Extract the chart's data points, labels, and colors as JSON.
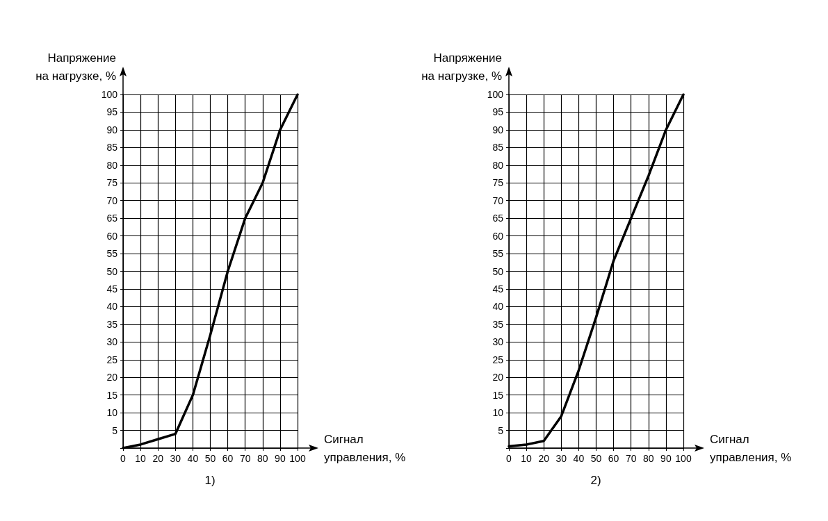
{
  "chart_data": [
    {
      "type": "line",
      "xlabel": "Сигнал\nуправления, %",
      "ylabel": "Напряжение\nна нагрузке, %",
      "annotations": [
        "1)"
      ],
      "x": [
        0,
        10,
        20,
        30,
        40,
        50,
        60,
        70,
        80,
        90,
        100
      ],
      "series": [
        {
          "color": "#000000",
          "values": [
            0,
            1,
            2.5,
            4,
            15,
            32,
            50,
            65,
            75,
            90,
            100
          ]
        }
      ],
      "xlim": [
        0,
        100
      ],
      "xticks": [
        0,
        10,
        20,
        30,
        40,
        50,
        60,
        70,
        80,
        90,
        100
      ],
      "ylim": [
        0,
        100
      ],
      "yticks": [
        {
          "value": 0,
          "label": null
        },
        5,
        10,
        15,
        20,
        25,
        30,
        35,
        40,
        45,
        50,
        55,
        60,
        65,
        70,
        75,
        80,
        85,
        90,
        95,
        100
      ],
      "grid": true,
      "marker": "none",
      "line_style": "solid"
    },
    {
      "type": "line",
      "xlabel": "Сигнал\nуправления, %",
      "ylabel": "Напряжение\nна нагрузке, %",
      "annotations": [
        "2)"
      ],
      "x": [
        0,
        10,
        20,
        30,
        40,
        50,
        60,
        70,
        80,
        90,
        100
      ],
      "series": [
        {
          "color": "#000000",
          "values": [
            0.5,
            1,
            2,
            9,
            22,
            37,
            53,
            65,
            77,
            90,
            100
          ]
        }
      ],
      "xlim": [
        0,
        100
      ],
      "xticks": [
        0,
        10,
        20,
        30,
        40,
        50,
        60,
        70,
        80,
        90,
        100
      ],
      "ylim": [
        0,
        100
      ],
      "yticks": [
        {
          "value": 0,
          "label": null
        },
        5,
        10,
        15,
        20,
        25,
        30,
        35,
        40,
        45,
        50,
        55,
        60,
        65,
        70,
        75,
        80,
        85,
        90,
        95,
        100
      ],
      "grid": true,
      "marker": "none",
      "line_style": "solid"
    }
  ]
}
